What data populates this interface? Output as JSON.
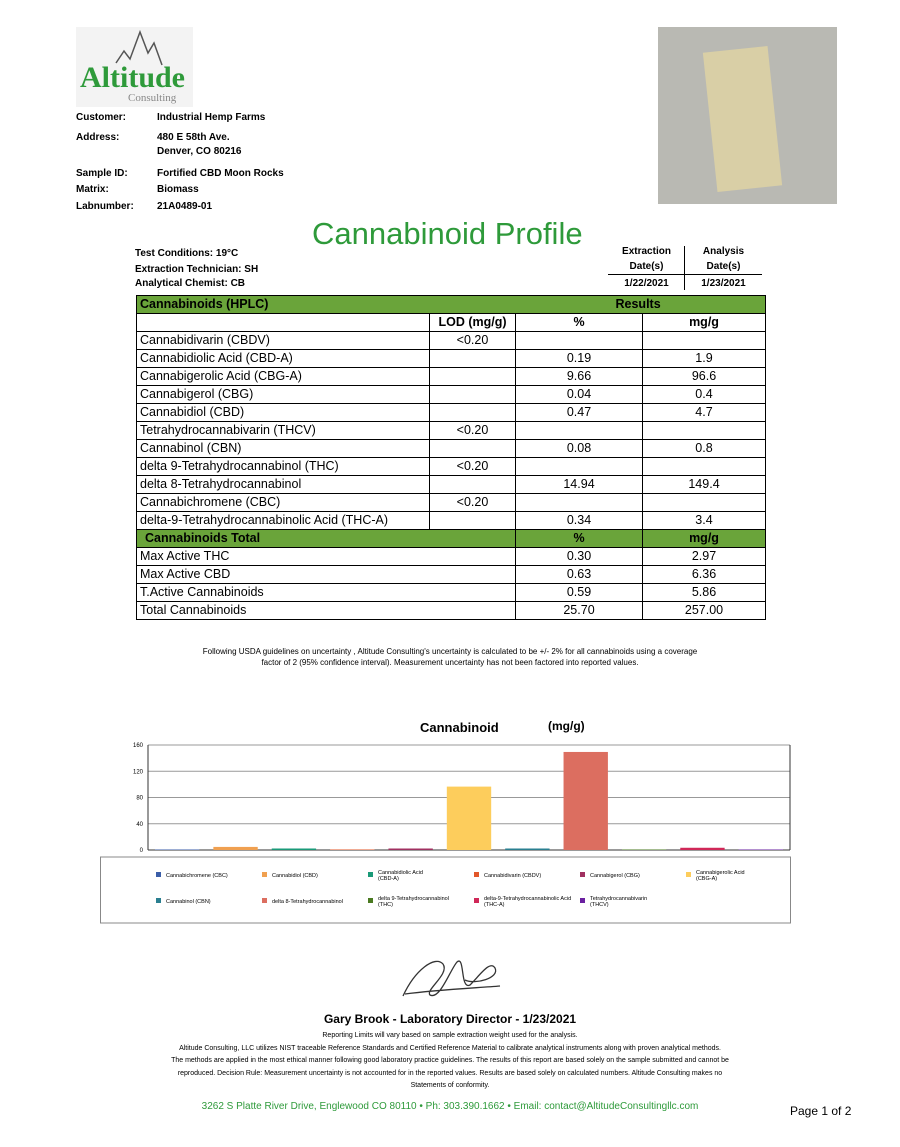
{
  "logo": {
    "name": "Altitude",
    "sub": "Consulting"
  },
  "info": [
    {
      "label": "Customer:",
      "value": "Industrial Hemp Farms"
    },
    {
      "label": "Address:",
      "value": "480 E 58th Ave.",
      "value2": "Denver, CO 80216"
    },
    {
      "label": "Sample ID:",
      "value": "Fortified CBD Moon Rocks"
    },
    {
      "label": "Matrix:",
      "value": "Biomass"
    },
    {
      "label": "Labnumber:",
      "value": "21A0489-01"
    }
  ],
  "title": "Cannabinoid Profile",
  "conditions": [
    "Test Conditions: 19°C",
    "Extraction Technician: SH",
    "Analytical Chemist: CB"
  ],
  "dates": {
    "extraction_label1": "Extraction",
    "extraction_label2": "Date(s)",
    "extraction": "1/22/2021",
    "analysis_label1": "Analysis",
    "analysis_label2": "Date(s)",
    "analysis": "1/23/2021"
  },
  "table": {
    "header": "Cannabinoids (HPLC)",
    "results": "Results",
    "cols": [
      "LOD (mg/g)",
      "%",
      "mg/g"
    ],
    "rows": [
      [
        "Cannabidivarin (CBDV)",
        "<0.20",
        "",
        ""
      ],
      [
        "Cannabidiolic Acid (CBD-A)",
        "",
        "0.19",
        "1.9"
      ],
      [
        "Cannabigerolic Acid (CBG-A)",
        "",
        "9.66",
        "96.6"
      ],
      [
        "Cannabigerol (CBG)",
        "",
        "0.04",
        "0.4"
      ],
      [
        "Cannabidiol (CBD)",
        "",
        "0.47",
        "4.7"
      ],
      [
        "Tetrahydrocannabivarin (THCV)",
        "<0.20",
        "",
        ""
      ],
      [
        "Cannabinol (CBN)",
        "",
        "0.08",
        "0.8"
      ],
      [
        "delta 9-Tetrahydrocannabinol (THC)",
        "<0.20",
        "",
        ""
      ],
      [
        "delta 8-Tetrahydrocannabinol",
        "",
        "14.94",
        "149.4"
      ],
      [
        "Cannabichromene (CBC)",
        "<0.20",
        "",
        ""
      ],
      [
        "delta-9-Tetrahydrocannabinolic Acid (THC-A)",
        "",
        "0.34",
        "3.4"
      ]
    ],
    "totals_header": [
      "Cannabinoids Total",
      "%",
      "mg/g"
    ],
    "totals": [
      [
        "Max Active THC",
        "0.30",
        "2.97"
      ],
      [
        "Max Active CBD",
        "0.63",
        "6.36"
      ],
      [
        "T.Active Cannabinoids",
        "0.59",
        "5.86"
      ],
      [
        "Total Cannabinoids",
        "25.70",
        "257.00"
      ]
    ]
  },
  "note": [
    "Following USDA guidelines on uncertainty , Altitude Consulting's uncertainty is calculated to be +/- 2% for all cannabinoids using a coverage",
    "factor of 2 (95% confidence interval). Measurement uncertainty has not been factored into reported values."
  ],
  "chart_data": {
    "type": "bar",
    "title": "Cannabinoid",
    "title_unit": "(mg/g)",
    "ylim": [
      0,
      160
    ],
    "yticks": [
      0,
      40,
      80,
      120,
      160
    ],
    "grid": true,
    "legend": "bottom",
    "categories": [
      "Cannabichromene (CBC)",
      "Cannabidiol (CBD)",
      "Cannabidiolic Acid (CBD-A)",
      "Cannabidivarin (CBDV)",
      "Cannabigerol (CBG)",
      "Cannabigerolic Acid (CBG-A)",
      "Cannabinol (CBN)",
      "delta 8-Tetrahydrocannabinol",
      "delta 9-Tetrahydrocannabinol (THC)",
      "delta-9-Tetrahydrocannabinolic Acid (THC-A)",
      "Tetrahydrocannabivarin (THCV)"
    ],
    "values": [
      0,
      4.7,
      1.9,
      0,
      0.4,
      96.6,
      0.8,
      149.4,
      0,
      3.4,
      0
    ],
    "colors": [
      "#3b5ea8",
      "#f0a050",
      "#1a9a78",
      "#e2572a",
      "#a03060",
      "#fdcd5c",
      "#2a7f90",
      "#dc6e60",
      "#4a7a20",
      "#d02858",
      "#6a20a0"
    ]
  },
  "signature": {
    "name": "Gary Brook - Laboratory Director - 1/23/2021"
  },
  "footer": [
    "Reporting Limits will vary based on sample extraction weight used for the analysis.",
    "Altitude Consulting, LLC utilizes NIST traceable Reference Standards and Certified Reference Material to calibrate analytical instruments along with proven analytical methods.",
    "The methods are applied in the most ethical manner following good laboratory practice guidelines. The results of this report are based solely on the sample submitted and cannot be",
    "reproduced. Decision Rule: Measurement uncertainty is not accounted for in the reported values. Results are based solely on calculated numbers. Altitude Consulting makes no",
    "Statements of conformity."
  ],
  "contact": "3262 S Platte River Drive, Englewood CO 80110  •  Ph: 303.390.1662  •  Email: contact@AltitudeConsultingllc.com",
  "page": "Page 1 of 2"
}
